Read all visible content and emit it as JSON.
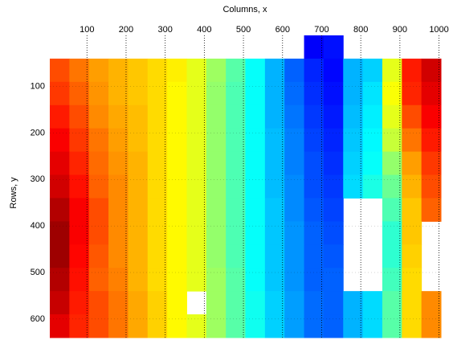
{
  "chart_data": {
    "type": "heatmap",
    "colormap": "jet",
    "clim": [
      0,
      1
    ],
    "grid": true,
    "x_label": "Columns, x",
    "y_label": "Rows, y",
    "xlim": [
      5,
      1005
    ],
    "ylim": [
      -10,
      640
    ],
    "y_reversed": true,
    "xticks": [
      100,
      200,
      300,
      400,
      500,
      600,
      700,
      800,
      900,
      1000
    ],
    "yticks": [
      100,
      200,
      300,
      400,
      500,
      600
    ],
    "x": [
      30,
      80,
      130,
      180,
      230,
      280,
      330,
      380,
      430,
      480,
      530,
      580,
      630,
      680,
      730,
      780,
      830,
      880,
      930,
      980
    ],
    "y": [
      15,
      65,
      115,
      165,
      215,
      265,
      315,
      365,
      415,
      465,
      515,
      565,
      615
    ],
    "z": [
      [
        null,
        null,
        null,
        null,
        null,
        null,
        null,
        null,
        null,
        null,
        null,
        null,
        null,
        0.12,
        0.14,
        null,
        null,
        null,
        null,
        null
      ],
      [
        0.8,
        0.76,
        0.72,
        0.7,
        0.68,
        0.66,
        0.64,
        0.6,
        0.53,
        0.46,
        0.38,
        0.3,
        0.22,
        0.16,
        0.13,
        0.3,
        0.33,
        0.6,
        0.85,
        0.92
      ],
      [
        0.82,
        0.78,
        0.73,
        0.7,
        0.68,
        0.66,
        0.63,
        0.6,
        0.52,
        0.45,
        0.38,
        0.3,
        0.23,
        0.17,
        0.14,
        0.3,
        0.35,
        0.62,
        0.84,
        0.9
      ],
      [
        0.85,
        0.8,
        0.74,
        0.71,
        0.69,
        0.66,
        0.63,
        0.6,
        0.52,
        0.45,
        0.38,
        0.3,
        0.24,
        0.18,
        0.15,
        0.31,
        0.36,
        0.6,
        0.8,
        0.88
      ],
      [
        0.88,
        0.82,
        0.76,
        0.72,
        0.69,
        0.66,
        0.63,
        0.6,
        0.52,
        0.45,
        0.38,
        0.31,
        0.25,
        0.19,
        0.16,
        0.32,
        0.37,
        0.57,
        0.76,
        0.85
      ],
      [
        0.9,
        0.84,
        0.77,
        0.73,
        0.7,
        0.66,
        0.63,
        0.6,
        0.52,
        0.45,
        0.38,
        0.31,
        0.25,
        0.2,
        0.17,
        0.33,
        0.38,
        0.52,
        0.72,
        0.82
      ],
      [
        0.92,
        0.86,
        0.78,
        0.74,
        0.7,
        0.66,
        0.63,
        0.6,
        0.52,
        0.45,
        0.38,
        0.31,
        0.26,
        0.2,
        0.18,
        0.34,
        0.4,
        0.48,
        0.7,
        0.8
      ],
      [
        0.95,
        0.88,
        0.8,
        0.74,
        0.7,
        0.66,
        0.63,
        0.6,
        0.52,
        0.45,
        0.38,
        0.32,
        0.26,
        0.21,
        0.19,
        null,
        null,
        0.45,
        0.68,
        0.78
      ],
      [
        0.97,
        0.88,
        0.8,
        0.74,
        0.7,
        0.66,
        0.63,
        0.6,
        0.52,
        0.45,
        0.38,
        0.32,
        0.27,
        0.22,
        0.2,
        null,
        null,
        0.42,
        0.68,
        null
      ],
      [
        0.97,
        0.87,
        0.79,
        0.74,
        0.7,
        0.66,
        0.63,
        0.6,
        0.52,
        0.45,
        0.38,
        0.32,
        0.27,
        0.22,
        0.21,
        null,
        null,
        0.42,
        0.67,
        null
      ],
      [
        0.95,
        0.86,
        0.78,
        0.75,
        0.7,
        0.66,
        0.63,
        0.6,
        0.53,
        0.46,
        0.38,
        0.32,
        0.27,
        0.22,
        0.22,
        null,
        null,
        0.44,
        0.66,
        null
      ],
      [
        0.93,
        0.85,
        0.8,
        0.76,
        0.71,
        0.67,
        0.63,
        null,
        0.53,
        0.46,
        0.39,
        0.33,
        0.28,
        0.23,
        0.22,
        0.3,
        0.34,
        0.46,
        0.66,
        0.74
      ],
      [
        0.9,
        0.84,
        0.8,
        0.76,
        0.71,
        0.67,
        0.63,
        0.6,
        0.53,
        0.46,
        0.39,
        0.33,
        0.28,
        0.23,
        0.22,
        0.3,
        0.34,
        0.46,
        0.66,
        0.74
      ]
    ]
  }
}
